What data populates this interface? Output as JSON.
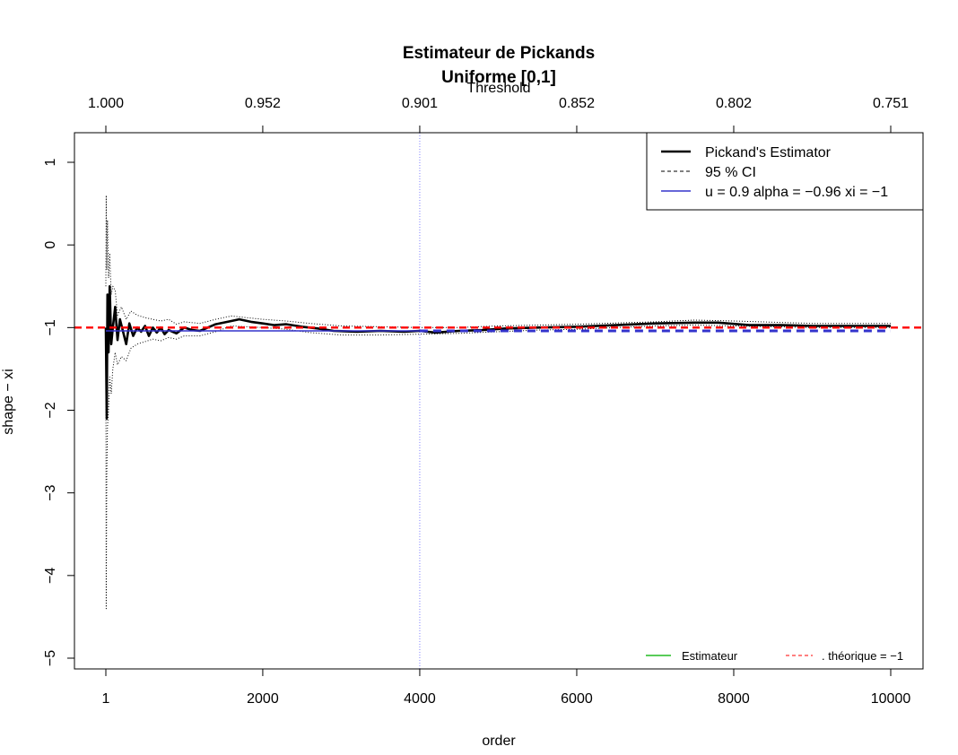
{
  "chart_data": {
    "type": "line",
    "title": "Estimateur de Pickands",
    "subtitle": "Uniforme [0,1]",
    "xlabel": "order",
    "ylabel": "shape  − xi",
    "top_axis_label": "Threshold",
    "xlim": [
      1,
      10000
    ],
    "ylim": [
      -5,
      1
    ],
    "x_ticks": [
      1,
      2000,
      4000,
      6000,
      8000,
      10000
    ],
    "x_tick_labels": [
      "1",
      "2000",
      "4000",
      "6000",
      "8000",
      "10000"
    ],
    "y_ticks": [
      -5,
      -4,
      -3,
      -2,
      -1,
      0,
      1
    ],
    "y_tick_labels": [
      "−5",
      "−4",
      "−3",
      "−2",
      "−1",
      "0",
      "1"
    ],
    "top_ticks": [
      {
        "x": 1,
        "label": "1.000"
      },
      {
        "x": 2000,
        "label": "0.952"
      },
      {
        "x": 4000,
        "label": "0.901"
      },
      {
        "x": 6000,
        "label": "0.852"
      },
      {
        "x": 8000,
        "label": "0.802"
      },
      {
        "x": 10000,
        "label": "0.751"
      }
    ],
    "vertical_line_x": 4000,
    "series": [
      {
        "name": "Pickand's Estimator",
        "color": "#000000",
        "style": "solid-thick",
        "points": [
          [
            1,
            -1.0
          ],
          [
            12,
            -2.1
          ],
          [
            22,
            -0.6
          ],
          [
            35,
            -1.3
          ],
          [
            50,
            -0.5
          ],
          [
            70,
            -1.2
          ],
          [
            90,
            -1.0
          ],
          [
            120,
            -0.75
          ],
          [
            150,
            -1.15
          ],
          [
            180,
            -0.9
          ],
          [
            220,
            -1.05
          ],
          [
            260,
            -1.2
          ],
          [
            300,
            -0.95
          ],
          [
            350,
            -1.1
          ],
          [
            400,
            -1.0
          ],
          [
            450,
            -1.05
          ],
          [
            500,
            -0.98
          ],
          [
            550,
            -1.1
          ],
          [
            600,
            -1.0
          ],
          [
            650,
            -1.06
          ],
          [
            700,
            -1.0
          ],
          [
            750,
            -1.08
          ],
          [
            800,
            -1.03
          ],
          [
            900,
            -1.07
          ],
          [
            1000,
            -1.0
          ],
          [
            1100,
            -1.03
          ],
          [
            1200,
            -1.04
          ],
          [
            1300,
            -1.0
          ],
          [
            1400,
            -0.96
          ],
          [
            1550,
            -0.93
          ],
          [
            1700,
            -0.9
          ],
          [
            1850,
            -0.93
          ],
          [
            2000,
            -0.95
          ],
          [
            2150,
            -0.97
          ],
          [
            2300,
            -0.96
          ],
          [
            2500,
            -0.99
          ],
          [
            2700,
            -1.01
          ],
          [
            2900,
            -1.04
          ],
          [
            3200,
            -1.05
          ],
          [
            3500,
            -1.04
          ],
          [
            3800,
            -1.05
          ],
          [
            4000,
            -1.04
          ],
          [
            4200,
            -1.06
          ],
          [
            4500,
            -1.04
          ],
          [
            4800,
            -1.03
          ],
          [
            5100,
            -1.01
          ],
          [
            5500,
            -1.0
          ],
          [
            6000,
            -0.99
          ],
          [
            6500,
            -0.97
          ],
          [
            7000,
            -0.95
          ],
          [
            7500,
            -0.94
          ],
          [
            7800,
            -0.94
          ],
          [
            8200,
            -0.97
          ],
          [
            8600,
            -0.97
          ],
          [
            9000,
            -0.98
          ],
          [
            9500,
            -0.98
          ],
          [
            10000,
            -0.98
          ]
        ]
      },
      {
        "name": "95 % CI",
        "color": "#000000",
        "style": "dotted",
        "upper": [
          [
            1,
            -0.5
          ],
          [
            6,
            0.6
          ],
          [
            12,
            -0.3
          ],
          [
            22,
            0.3
          ],
          [
            35,
            -0.4
          ],
          [
            50,
            -0.1
          ],
          [
            70,
            -0.6
          ],
          [
            90,
            -0.5
          ],
          [
            120,
            -0.55
          ],
          [
            150,
            -0.85
          ],
          [
            200,
            -0.75
          ],
          [
            260,
            -0.9
          ],
          [
            320,
            -0.8
          ],
          [
            400,
            -0.85
          ],
          [
            500,
            -0.88
          ],
          [
            600,
            -0.9
          ],
          [
            700,
            -0.92
          ],
          [
            800,
            -0.9
          ],
          [
            900,
            -0.96
          ],
          [
            1000,
            -0.93
          ],
          [
            1200,
            -0.95
          ],
          [
            1400,
            -0.9
          ],
          [
            1600,
            -0.86
          ],
          [
            1800,
            -0.88
          ],
          [
            2000,
            -0.9
          ],
          [
            2300,
            -0.92
          ],
          [
            2600,
            -0.95
          ],
          [
            3000,
            -0.98
          ],
          [
            3500,
            -0.99
          ],
          [
            4000,
            -1.0
          ],
          [
            4500,
            -1.0
          ],
          [
            5000,
            -0.98
          ],
          [
            5500,
            -0.97
          ],
          [
            6000,
            -0.96
          ],
          [
            7000,
            -0.93
          ],
          [
            7500,
            -0.91
          ],
          [
            8000,
            -0.92
          ],
          [
            9000,
            -0.95
          ],
          [
            10000,
            -0.95
          ]
        ],
        "lower": [
          [
            1,
            -1.5
          ],
          [
            6,
            -4.4
          ],
          [
            12,
            -2.8
          ],
          [
            22,
            -2.2
          ],
          [
            35,
            -2.0
          ],
          [
            50,
            -1.6
          ],
          [
            70,
            -1.8
          ],
          [
            90,
            -1.5
          ],
          [
            120,
            -1.3
          ],
          [
            150,
            -1.45
          ],
          [
            200,
            -1.35
          ],
          [
            260,
            -1.4
          ],
          [
            320,
            -1.25
          ],
          [
            400,
            -1.2
          ],
          [
            500,
            -1.17
          ],
          [
            600,
            -1.14
          ],
          [
            700,
            -1.16
          ],
          [
            800,
            -1.12
          ],
          [
            900,
            -1.14
          ],
          [
            1000,
            -1.1
          ],
          [
            1200,
            -1.1
          ],
          [
            1400,
            -1.05
          ],
          [
            1600,
            -0.98
          ],
          [
            1800,
            -0.99
          ],
          [
            2000,
            -1.0
          ],
          [
            2300,
            -1.02
          ],
          [
            2600,
            -1.06
          ],
          [
            3000,
            -1.09
          ],
          [
            3500,
            -1.09
          ],
          [
            4000,
            -1.08
          ],
          [
            4500,
            -1.07
          ],
          [
            5000,
            -1.05
          ],
          [
            5500,
            -1.03
          ],
          [
            6000,
            -1.02
          ],
          [
            7000,
            -0.98
          ],
          [
            7500,
            -0.97
          ],
          [
            8000,
            -0.98
          ],
          [
            9000,
            -1.0
          ],
          [
            10000,
            -1.0
          ]
        ]
      },
      {
        "name": "u = 0.9 alpha = −0.96 xi =  −1",
        "color": "#3333cc",
        "style": "solid",
        "points": [
          [
            1,
            -1.04
          ],
          [
            4000,
            -1.04
          ]
        ]
      },
      {
        "name": "u = 0.9 alpha = −0.96 xi =  −1 (extension)",
        "color": "#3333cc",
        "style": "dashed-thick",
        "points": [
          [
            4000,
            -1.04
          ],
          [
            10000,
            -1.04
          ]
        ]
      }
    ],
    "reference_line": {
      "y": -1,
      "color": "#ff0000",
      "style": "dashed"
    },
    "legend_main": {
      "position": "top-right",
      "entries": [
        {
          "label": "Pickand's Estimator",
          "color": "#000000",
          "style": "solid-thick"
        },
        {
          "label": "95 % CI",
          "color": "#000000",
          "style": "dashed"
        },
        {
          "label": "u = 0.9 alpha = −0.96 xi =  −1",
          "color": "#3333cc",
          "style": "solid"
        }
      ]
    },
    "legend_bottom": {
      "position": "bottom-right",
      "entries": [
        {
          "label": "Estimateur",
          "color": "#22bb22",
          "style": "solid"
        },
        {
          "label": ". théorique = −1",
          "color": "#ff0000",
          "style": "dashed"
        }
      ]
    }
  }
}
